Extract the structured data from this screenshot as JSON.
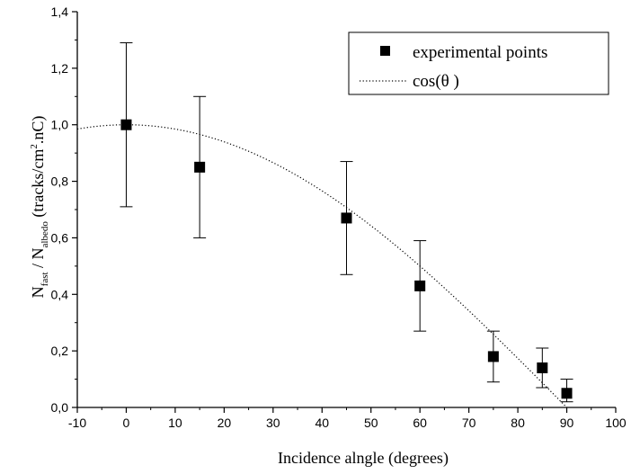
{
  "chart_data": {
    "type": "scatter",
    "xlabel": "Incidence alngle (degrees)",
    "ylabel": {
      "n1": "N",
      "n1_sub": "fast",
      "slash": " / N",
      "n2_sub": "albedo",
      "units_open": " (tracks/cm",
      "units_sup": "2",
      "units_close": ".nC)"
    },
    "xlim": [
      -10,
      100
    ],
    "ylim": [
      0,
      1.4
    ],
    "xticks": [
      "-10",
      "0",
      "10",
      "20",
      "30",
      "40",
      "50",
      "60",
      "70",
      "80",
      "90",
      "100"
    ],
    "yticks": [
      "0,0",
      "0,2",
      "0,4",
      "0,6",
      "0,8",
      "1,0",
      "1,2",
      "1,4"
    ],
    "x_tick_values": [
      -10,
      0,
      10,
      20,
      30,
      40,
      50,
      60,
      70,
      80,
      90,
      100
    ],
    "y_tick_values": [
      0,
      0.2,
      0.4,
      0.6,
      0.8,
      1.0,
      1.2,
      1.4
    ],
    "grid": false,
    "legend_position": "top-right",
    "series": [
      {
        "name": "experimental points",
        "kind": "scatter-errorbar",
        "marker": "filled-square",
        "color": "#000000",
        "points": [
          {
            "x": 0,
            "y": 1.0,
            "y_low": 0.71,
            "y_high": 1.29
          },
          {
            "x": 15,
            "y": 0.85,
            "y_low": 0.6,
            "y_high": 1.1
          },
          {
            "x": 45,
            "y": 0.67,
            "y_low": 0.47,
            "y_high": 0.87
          },
          {
            "x": 60,
            "y": 0.43,
            "y_low": 0.27,
            "y_high": 0.59
          },
          {
            "x": 75,
            "y": 0.18,
            "y_low": 0.09,
            "y_high": 0.27
          },
          {
            "x": 85,
            "y": 0.14,
            "y_low": 0.07,
            "y_high": 0.21
          },
          {
            "x": 90,
            "y": 0.05,
            "y_low": 0.02,
            "y_high": 0.1
          }
        ]
      },
      {
        "name": "cos(θ )",
        "kind": "dotted-line",
        "color": "#000000",
        "function": "cos",
        "x_range": [
          -10,
          90
        ]
      }
    ]
  }
}
